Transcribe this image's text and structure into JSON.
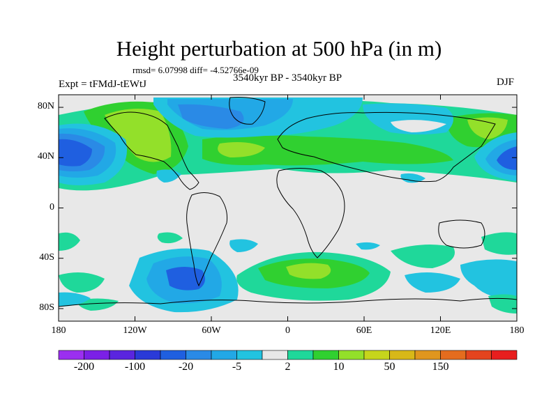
{
  "title": "Height perturbation at 500 hPa (in m)",
  "stats": "rmsd= 6.07998 diff= -4.52766e-09",
  "period": "3540kyr BP - 3540kyr BP",
  "experiment": "Expt = tFMdJ-tEWtJ",
  "season": "DJF",
  "axes": {
    "y_ticks": [
      {
        "label": "80N",
        "lat": 80
      },
      {
        "label": "40N",
        "lat": 40
      },
      {
        "label": "0",
        "lat": 0
      },
      {
        "label": "40S",
        "lat": -40
      },
      {
        "label": "80S",
        "lat": -80
      }
    ],
    "x_ticks": [
      {
        "label": "180",
        "lon": -180
      },
      {
        "label": "120W",
        "lon": -120
      },
      {
        "label": "60W",
        "lon": -60
      },
      {
        "label": "0",
        "lon": 0
      },
      {
        "label": "60E",
        "lon": 60
      },
      {
        "label": "120E",
        "lon": 120
      },
      {
        "label": "180",
        "lon": 180
      }
    ]
  },
  "colorbar": {
    "colors": [
      "#9b2ff0",
      "#7b20e6",
      "#5a25df",
      "#2a3ad8",
      "#1f5fe0",
      "#2a8ae6",
      "#22a8e6",
      "#22c3e0",
      "#e8e8e8",
      "#1fd89a",
      "#30d030",
      "#93e02a",
      "#c6d51c",
      "#d8b818",
      "#e0961e",
      "#e46c1e",
      "#e4441e",
      "#e81e1e"
    ],
    "labels": [
      {
        "text": "-200",
        "boundary": 1
      },
      {
        "text": "-100",
        "boundary": 3
      },
      {
        "text": "-20",
        "boundary": 5
      },
      {
        "text": "-5",
        "boundary": 7
      },
      {
        "text": "2",
        "boundary": 9
      },
      {
        "text": "10",
        "boundary": 11
      },
      {
        "text": "50",
        "boundary": 13
      },
      {
        "text": "150",
        "boundary": 15
      }
    ]
  },
  "colors": {
    "background": "#e8e8e8",
    "weak_pos": "#1fd89a",
    "pos": "#30d030",
    "strong_pos": "#93e02a",
    "weak_neg": "#22c3e0",
    "neg": "#22a8e6",
    "strong_neg": "#2a8ae6",
    "very_neg": "#1f5fe0"
  }
}
